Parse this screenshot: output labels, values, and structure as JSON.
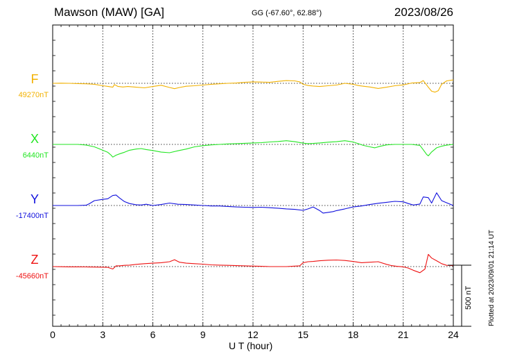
{
  "header": {
    "station": "Mawson (MAW)  [GA]",
    "coords": "GG (-67.60°,  62.88°)",
    "date": "2023/08/26"
  },
  "footer": {
    "plotted": "Plotted at 2023/09/01 21:14 UT",
    "scale_label": "500 nT"
  },
  "colors": {
    "F": "#f2b100",
    "X": "#22e622",
    "Y": "#1010dd",
    "Z": "#ee1111"
  },
  "chart_data": {
    "type": "line",
    "xlabel": "U T (hour)",
    "xlim": [
      0,
      24
    ],
    "xticks": [
      0,
      3,
      6,
      9,
      12,
      15,
      18,
      21,
      24
    ],
    "grid": true,
    "scale_bar_nT": 500,
    "series": [
      {
        "name": "F",
        "baseline_label": "49270nT",
        "baseline": 49270,
        "x": [
          0,
          0.5,
          1,
          1.5,
          2,
          2.5,
          3,
          3.3,
          3.6,
          3.7,
          3.9,
          4.2,
          4.5,
          5,
          5.5,
          6,
          6.5,
          7,
          7.3,
          7.6,
          8,
          8.5,
          9,
          9.5,
          10,
          10.5,
          11,
          11.5,
          12,
          12.5,
          13,
          13.5,
          14,
          14.5,
          14.8,
          15,
          15.3,
          15.6,
          16,
          16.5,
          17,
          17.5,
          18,
          18.3,
          18.6,
          19,
          19.5,
          20,
          20.5,
          21,
          21.5,
          22,
          22.2,
          22.5,
          22.7,
          22.9,
          23.1,
          23.3,
          23.6,
          24
        ],
        "values": [
          49270,
          49271,
          49270,
          49268,
          49266,
          49262,
          49250,
          49245,
          49238,
          49260,
          49245,
          49240,
          49244,
          49238,
          49233,
          49244,
          49254,
          49236,
          49226,
          49236,
          49246,
          49250,
          49256,
          49262,
          49266,
          49270,
          49272,
          49278,
          49282,
          49280,
          49278,
          49286,
          49292,
          49290,
          49282,
          49262,
          49252,
          49248,
          49244,
          49250,
          49256,
          49270,
          49262,
          49252,
          49246,
          49240,
          49228,
          49238,
          49250,
          49257,
          49272,
          49276,
          49292,
          49238,
          49205,
          49198,
          49210,
          49262,
          49290,
          49298
        ]
      },
      {
        "name": "X",
        "baseline_label": "6440nT",
        "baseline": 6440,
        "x": [
          0,
          0.5,
          1,
          1.5,
          2,
          2.5,
          3,
          3.3,
          3.5,
          3.6,
          3.8,
          4,
          4.3,
          4.6,
          5,
          5.3,
          5.6,
          6,
          6.5,
          7,
          7.5,
          8,
          8.5,
          9,
          9.5,
          10,
          10.5,
          11,
          11.5,
          12,
          12.5,
          13,
          13.5,
          14,
          14.5,
          15,
          15.3,
          15.6,
          16,
          16.5,
          17,
          17.5,
          18,
          18.3,
          18.6,
          19,
          19.3,
          19.6,
          20,
          20.5,
          21,
          21.5,
          22,
          22.2,
          22.4,
          22.5,
          22.7,
          23,
          23.3,
          23.6,
          24
        ],
        "values": [
          6440,
          6440,
          6440,
          6440,
          6435,
          6420,
          6392,
          6375,
          6352,
          6336,
          6352,
          6362,
          6376,
          6392,
          6402,
          6406,
          6398,
          6390,
          6377,
          6372,
          6388,
          6402,
          6420,
          6430,
          6436,
          6440,
          6444,
          6446,
          6449,
          6452,
          6454,
          6460,
          6464,
          6470,
          6462,
          6450,
          6446,
          6448,
          6452,
          6458,
          6462,
          6470,
          6460,
          6446,
          6432,
          6420,
          6412,
          6424,
          6436,
          6440,
          6440,
          6440,
          6432,
          6396,
          6358,
          6346,
          6378,
          6412,
          6425,
          6434,
          6440
        ]
      },
      {
        "name": "Y",
        "baseline_label": "-17400nT",
        "baseline": -17400,
        "x": [
          0,
          0.5,
          1,
          1.5,
          2,
          2.2,
          2.5,
          3,
          3.3,
          3.6,
          3.8,
          4,
          4.3,
          4.6,
          5,
          5.3,
          5.6,
          6,
          6.5,
          7,
          7.5,
          8,
          8.5,
          9,
          9.5,
          10,
          10.5,
          11,
          11.5,
          12,
          12.5,
          13,
          13.5,
          14,
          14.5,
          15,
          15.3,
          15.6,
          16,
          16.2,
          16.5,
          16.8,
          17,
          17.5,
          18,
          18.5,
          19,
          19.5,
          20,
          20.5,
          21,
          21.3,
          21.6,
          22,
          22.2,
          22.5,
          22.7,
          23,
          23.3,
          23.6,
          24
        ],
        "values": [
          -17400,
          -17400,
          -17400,
          -17400,
          -17398,
          -17385,
          -17360,
          -17350,
          -17345,
          -17318,
          -17314,
          -17338,
          -17368,
          -17384,
          -17394,
          -17396,
          -17390,
          -17400,
          -17392,
          -17380,
          -17390,
          -17392,
          -17396,
          -17400,
          -17404,
          -17404,
          -17408,
          -17412,
          -17414,
          -17416,
          -17414,
          -17418,
          -17422,
          -17428,
          -17432,
          -17440,
          -17428,
          -17412,
          -17442,
          -17462,
          -17456,
          -17450,
          -17442,
          -17428,
          -17412,
          -17404,
          -17392,
          -17382,
          -17374,
          -17366,
          -17370,
          -17384,
          -17396,
          -17388,
          -17330,
          -17336,
          -17380,
          -17296,
          -17360,
          -17378,
          -17400
        ]
      },
      {
        "name": "Z",
        "baseline_label": "-45660nT",
        "baseline": -45660,
        "x": [
          0,
          0.5,
          1,
          1.5,
          2,
          2.5,
          3,
          3.3,
          3.6,
          3.8,
          4,
          4.3,
          4.6,
          5,
          5.5,
          6,
          6.5,
          7,
          7.3,
          7.6,
          8,
          8.5,
          9,
          9.5,
          10,
          10.5,
          11,
          11.5,
          12,
          12.5,
          13,
          13.5,
          14,
          14.5,
          14.8,
          15,
          15.3,
          15.6,
          16,
          16.5,
          17,
          17.5,
          18,
          18.5,
          19,
          19.5,
          20,
          20.3,
          20.6,
          21,
          21.3,
          21.6,
          22,
          22.3,
          22.5,
          22.7,
          23,
          23.3,
          23.6,
          24
        ],
        "values": [
          -45660,
          -45661,
          -45662,
          -45662,
          -45663,
          -45664,
          -45665,
          -45666,
          -45680,
          -45654,
          -45654,
          -45650,
          -45648,
          -45642,
          -45636,
          -45632,
          -45628,
          -45620,
          -45604,
          -45624,
          -45632,
          -45636,
          -45640,
          -45646,
          -45648,
          -45650,
          -45652,
          -45654,
          -45656,
          -45658,
          -45660,
          -45660,
          -45660,
          -45656,
          -45654,
          -45628,
          -45620,
          -45618,
          -45612,
          -45608,
          -45606,
          -45610,
          -45618,
          -45628,
          -45624,
          -45620,
          -45642,
          -45652,
          -45658,
          -45662,
          -45672,
          -45690,
          -45710,
          -45680,
          -45560,
          -45590,
          -45612,
          -45636,
          -45650,
          -45652
        ]
      }
    ]
  }
}
